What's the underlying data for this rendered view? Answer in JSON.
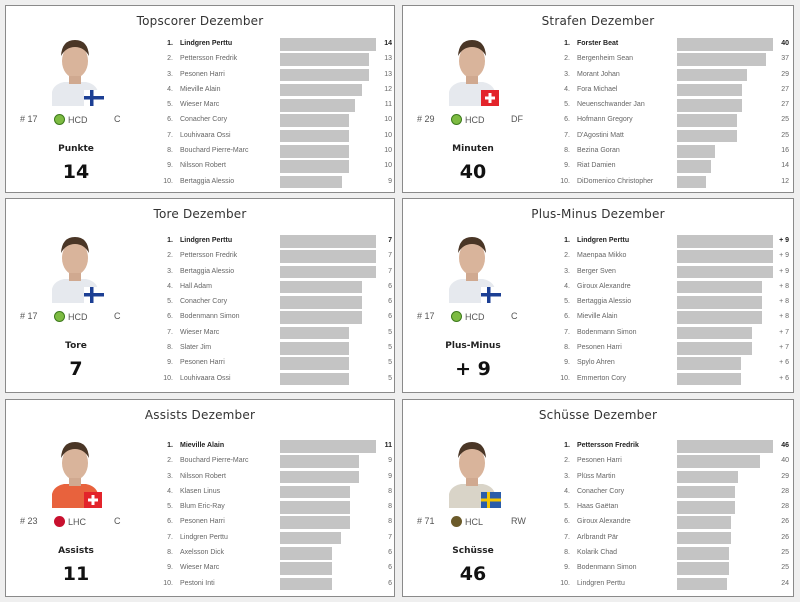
{
  "panels": [
    {
      "title": "Topscorer Dezember",
      "player": {
        "number": "# 17",
        "team": "HCD",
        "team_logo": "hcd-logo",
        "position": "C",
        "flag": "finland-flag"
      },
      "stat_label": "Punkte",
      "stat_value": "14",
      "max": 14,
      "rows": [
        {
          "rank": "1.",
          "name": "Lindgren Perttu",
          "value": "14",
          "v": 14
        },
        {
          "rank": "2.",
          "name": "Pettersson Fredrik",
          "value": "13",
          "v": 13
        },
        {
          "rank": "3.",
          "name": "Pesonen Harri",
          "value": "13",
          "v": 13
        },
        {
          "rank": "4.",
          "name": "Mieville Alain",
          "value": "12",
          "v": 12
        },
        {
          "rank": "5.",
          "name": "Wieser Marc",
          "value": "11",
          "v": 11
        },
        {
          "rank": "6.",
          "name": "Conacher Cory",
          "value": "10",
          "v": 10
        },
        {
          "rank": "7.",
          "name": "Louhivaara Ossi",
          "value": "10",
          "v": 10
        },
        {
          "rank": "8.",
          "name": "Bouchard Pierre-Marc",
          "value": "10",
          "v": 10
        },
        {
          "rank": "9.",
          "name": "Nilsson Robert",
          "value": "10",
          "v": 10
        },
        {
          "rank": "10.",
          "name": "Bertaggia Alessio",
          "value": "9",
          "v": 9
        }
      ]
    },
    {
      "title": "Strafen Dezember",
      "player": {
        "number": "# 29",
        "team": "HCD",
        "team_logo": "hcd-logo",
        "position": "DF",
        "flag": "switzerland-flag"
      },
      "stat_label": "Minuten",
      "stat_value": "40",
      "max": 40,
      "rows": [
        {
          "rank": "1.",
          "name": "Forster Beat",
          "value": "40",
          "v": 40
        },
        {
          "rank": "2.",
          "name": "Bergenheim Sean",
          "value": "37",
          "v": 37
        },
        {
          "rank": "3.",
          "name": "Morant Johan",
          "value": "29",
          "v": 29
        },
        {
          "rank": "4.",
          "name": "Fora Michael",
          "value": "27",
          "v": 27
        },
        {
          "rank": "5.",
          "name": "Neuenschwander Jan",
          "value": "27",
          "v": 27
        },
        {
          "rank": "6.",
          "name": "Hofmann Gregory",
          "value": "25",
          "v": 25
        },
        {
          "rank": "7.",
          "name": "D'Agostini Matt",
          "value": "25",
          "v": 25
        },
        {
          "rank": "8.",
          "name": "Bezina Goran",
          "value": "16",
          "v": 16
        },
        {
          "rank": "9.",
          "name": "Riat Damien",
          "value": "14",
          "v": 14
        },
        {
          "rank": "10.",
          "name": "DiDomenico Christopher",
          "value": "12",
          "v": 12
        }
      ]
    },
    {
      "title": "Tore Dezember",
      "player": {
        "number": "# 17",
        "team": "HCD",
        "team_logo": "hcd-logo",
        "position": "C",
        "flag": "finland-flag"
      },
      "stat_label": "Tore",
      "stat_value": "7",
      "max": 7,
      "rows": [
        {
          "rank": "1.",
          "name": "Lindgren Perttu",
          "value": "7",
          "v": 7
        },
        {
          "rank": "2.",
          "name": "Pettersson Fredrik",
          "value": "7",
          "v": 7
        },
        {
          "rank": "3.",
          "name": "Bertaggia Alessio",
          "value": "7",
          "v": 7
        },
        {
          "rank": "4.",
          "name": "Hall Adam",
          "value": "6",
          "v": 6
        },
        {
          "rank": "5.",
          "name": "Conacher Cory",
          "value": "6",
          "v": 6
        },
        {
          "rank": "6.",
          "name": "Bodenmann Simon",
          "value": "6",
          "v": 6
        },
        {
          "rank": "7.",
          "name": "Wieser Marc",
          "value": "5",
          "v": 5
        },
        {
          "rank": "8.",
          "name": "Slater Jim",
          "value": "5",
          "v": 5
        },
        {
          "rank": "9.",
          "name": "Pesonen Harri",
          "value": "5",
          "v": 5
        },
        {
          "rank": "10.",
          "name": "Louhivaara Ossi",
          "value": "5",
          "v": 5
        }
      ]
    },
    {
      "title": "Plus-Minus Dezember",
      "player": {
        "number": "# 17",
        "team": "HCD",
        "team_logo": "hcd-logo",
        "position": "C",
        "flag": "finland-flag"
      },
      "stat_label": "Plus-Minus",
      "stat_value": "+ 9",
      "max": 9,
      "rows": [
        {
          "rank": "1.",
          "name": "Lindgren Perttu",
          "value": "+ 9",
          "v": 9
        },
        {
          "rank": "2.",
          "name": "Maenpaa Mikko",
          "value": "+ 9",
          "v": 9
        },
        {
          "rank": "3.",
          "name": "Berger Sven",
          "value": "+ 9",
          "v": 9
        },
        {
          "rank": "4.",
          "name": "Giroux Alexandre",
          "value": "+ 8",
          "v": 8
        },
        {
          "rank": "5.",
          "name": "Bertaggia Alessio",
          "value": "+ 8",
          "v": 8
        },
        {
          "rank": "6.",
          "name": "Mieville Alain",
          "value": "+ 8",
          "v": 8
        },
        {
          "rank": "7.",
          "name": "Bodenmann Simon",
          "value": "+ 7",
          "v": 7
        },
        {
          "rank": "8.",
          "name": "Pesonen Harri",
          "value": "+ 7",
          "v": 7
        },
        {
          "rank": "9.",
          "name": "Spylo Ahren",
          "value": "+ 6",
          "v": 6
        },
        {
          "rank": "10.",
          "name": "Emmerton Cory",
          "value": "+ 6",
          "v": 6
        }
      ]
    },
    {
      "title": "Assists Dezember",
      "player": {
        "number": "# 23",
        "team": "LHC",
        "team_logo": "lhc-logo",
        "position": "C",
        "flag": "switzerland-flag"
      },
      "stat_label": "Assists",
      "stat_value": "11",
      "max": 11,
      "rows": [
        {
          "rank": "1.",
          "name": "Mieville Alain",
          "value": "11",
          "v": 11
        },
        {
          "rank": "2.",
          "name": "Bouchard Pierre-Marc",
          "value": "9",
          "v": 9
        },
        {
          "rank": "3.",
          "name": "Nilsson Robert",
          "value": "9",
          "v": 9
        },
        {
          "rank": "4.",
          "name": "Klasen Linus",
          "value": "8",
          "v": 8
        },
        {
          "rank": "5.",
          "name": "Blum Eric-Ray",
          "value": "8",
          "v": 8
        },
        {
          "rank": "6.",
          "name": "Pesonen Harri",
          "value": "8",
          "v": 8
        },
        {
          "rank": "7.",
          "name": "Lindgren Perttu",
          "value": "7",
          "v": 7
        },
        {
          "rank": "8.",
          "name": "Axelsson Dick",
          "value": "6",
          "v": 6
        },
        {
          "rank": "9.",
          "name": "Wieser Marc",
          "value": "6",
          "v": 6
        },
        {
          "rank": "10.",
          "name": "Pestoni Inti",
          "value": "6",
          "v": 6
        }
      ]
    },
    {
      "title": "Schüsse Dezember",
      "player": {
        "number": "# 71",
        "team": "HCL",
        "team_logo": "hcl-logo",
        "position": "RW",
        "flag": "sweden-flag"
      },
      "stat_label": "Schüsse",
      "stat_value": "46",
      "max": 46,
      "rows": [
        {
          "rank": "1.",
          "name": "Pettersson Fredrik",
          "value": "46",
          "v": 46
        },
        {
          "rank": "2.",
          "name": "Pesonen Harri",
          "value": "40",
          "v": 40
        },
        {
          "rank": "3.",
          "name": "Plüss Martin",
          "value": "29",
          "v": 29
        },
        {
          "rank": "4.",
          "name": "Conacher Cory",
          "value": "28",
          "v": 28
        },
        {
          "rank": "5.",
          "name": "Haas Gaëtan",
          "value": "28",
          "v": 28
        },
        {
          "rank": "6.",
          "name": "Giroux Alexandre",
          "value": "26",
          "v": 26
        },
        {
          "rank": "7.",
          "name": "Arlbrandt Pär",
          "value": "26",
          "v": 26
        },
        {
          "rank": "8.",
          "name": "Kolarik Chad",
          "value": "25",
          "v": 25
        },
        {
          "rank": "9.",
          "name": "Bodenmann Simon",
          "value": "25",
          "v": 25
        },
        {
          "rank": "10.",
          "name": "Lindgren Perttu",
          "value": "24",
          "v": 24
        }
      ]
    }
  ],
  "colors": {
    "bar": "#c4c4c4",
    "border": "#8a8a8a",
    "background": "#efefef",
    "hcd": "#7dbb42",
    "lhc": "#c8102e",
    "hcl": "#6b5a2a"
  }
}
